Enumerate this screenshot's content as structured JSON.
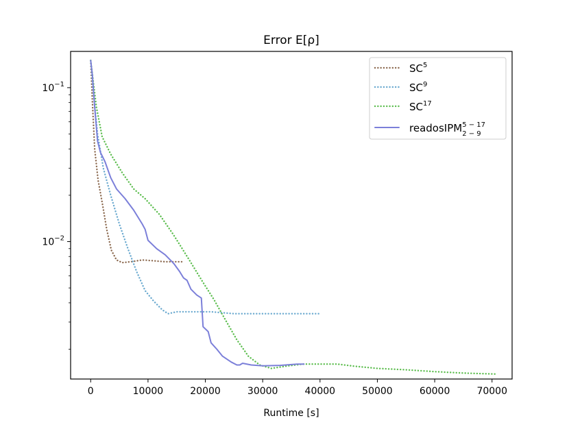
{
  "chart_data": {
    "type": "line",
    "title": "Error E[ρ]",
    "xlabel": "Runtime [s]",
    "ylabel": "",
    "yscale": "log",
    "xlim": [
      -3500,
      73500
    ],
    "ylim": [
      0.00128,
      0.172
    ],
    "xticks": [
      0,
      10000,
      20000,
      30000,
      40000,
      50000,
      60000,
      70000
    ],
    "xtick_labels": [
      "0",
      "10000",
      "20000",
      "30000",
      "40000",
      "50000",
      "60000",
      "70000"
    ],
    "ytick_labels": [
      {
        "value": 0.1,
        "base": "10",
        "exp": "−1"
      },
      {
        "value": 0.01,
        "base": "10",
        "exp": "−2"
      }
    ],
    "grid": false,
    "legend_position": "top-right",
    "series": [
      {
        "name_base": "SC",
        "name_sup": "5",
        "name_sub": "",
        "color": "#8c6a50",
        "style": "dotted",
        "points": [
          [
            0,
            0.15
          ],
          [
            300,
            0.08
          ],
          [
            700,
            0.04
          ],
          [
            1300,
            0.025
          ],
          [
            2000,
            0.018
          ],
          [
            2800,
            0.012
          ],
          [
            3600,
            0.0088
          ],
          [
            4500,
            0.0076
          ],
          [
            5500,
            0.0073
          ],
          [
            7000,
            0.0074
          ],
          [
            9000,
            0.0076
          ],
          [
            11000,
            0.0075
          ],
          [
            13000,
            0.0074
          ],
          [
            14500,
            0.0074
          ],
          [
            16000,
            0.0074
          ]
        ]
      },
      {
        "name_base": "SC",
        "name_sup": "9",
        "name_sub": "",
        "color": "#6aa9cf",
        "style": "dotted",
        "points": [
          [
            0,
            0.15
          ],
          [
            500,
            0.09
          ],
          [
            1200,
            0.05
          ],
          [
            2200,
            0.03
          ],
          [
            3500,
            0.02
          ],
          [
            5000,
            0.013
          ],
          [
            6500,
            0.009
          ],
          [
            8000,
            0.0064
          ],
          [
            9500,
            0.0048
          ],
          [
            11000,
            0.0041
          ],
          [
            12500,
            0.0036
          ],
          [
            13500,
            0.0034
          ],
          [
            15000,
            0.0035
          ],
          [
            18000,
            0.0035
          ],
          [
            21000,
            0.0035
          ],
          [
            25000,
            0.0034
          ],
          [
            30000,
            0.0034
          ],
          [
            35000,
            0.0034
          ],
          [
            40000,
            0.0034
          ]
        ]
      },
      {
        "name_base": "SC",
        "name_sup": "17",
        "name_sub": "",
        "color": "#5cbd4e",
        "style": "dotted",
        "points": [
          [
            0,
            0.15
          ],
          [
            1000,
            0.075
          ],
          [
            2000,
            0.048
          ],
          [
            3500,
            0.037
          ],
          [
            5500,
            0.028
          ],
          [
            7500,
            0.022
          ],
          [
            9500,
            0.019
          ],
          [
            12000,
            0.015
          ],
          [
            14500,
            0.011
          ],
          [
            17000,
            0.0078
          ],
          [
            19500,
            0.0055
          ],
          [
            21500,
            0.0042
          ],
          [
            23500,
            0.0031
          ],
          [
            25500,
            0.0023
          ],
          [
            27500,
            0.0018
          ],
          [
            29500,
            0.00158
          ],
          [
            31500,
            0.0015
          ],
          [
            34000,
            0.00155
          ],
          [
            37000,
            0.0016
          ],
          [
            40000,
            0.0016
          ],
          [
            43000,
            0.0016
          ],
          [
            46000,
            0.00155
          ],
          [
            50000,
            0.0015
          ],
          [
            55000,
            0.00147
          ],
          [
            60000,
            0.00143
          ],
          [
            65000,
            0.0014
          ],
          [
            70500,
            0.00138
          ]
        ]
      },
      {
        "name_base": "readosIPM",
        "name_sup": "5 − 17",
        "name_sub": "2 − 9",
        "color": "#7b7fd9",
        "style": "solid",
        "points": [
          [
            0,
            0.15
          ],
          [
            300,
            0.12
          ],
          [
            700,
            0.075
          ],
          [
            1200,
            0.045
          ],
          [
            1700,
            0.038
          ],
          [
            2500,
            0.033
          ],
          [
            3500,
            0.026
          ],
          [
            4500,
            0.022
          ],
          [
            6000,
            0.019
          ],
          [
            7500,
            0.016
          ],
          [
            9000,
            0.013
          ],
          [
            9500,
            0.012
          ],
          [
            10000,
            0.0102
          ],
          [
            11500,
            0.009
          ],
          [
            13000,
            0.0082
          ],
          [
            14500,
            0.0072
          ],
          [
            15500,
            0.0064
          ],
          [
            16200,
            0.0058
          ],
          [
            16800,
            0.0056
          ],
          [
            17500,
            0.0049
          ],
          [
            18500,
            0.0045
          ],
          [
            19300,
            0.0043
          ],
          [
            19600,
            0.0028
          ],
          [
            20500,
            0.0026
          ],
          [
            21000,
            0.0022
          ],
          [
            22000,
            0.002
          ],
          [
            23000,
            0.0018
          ],
          [
            24500,
            0.00165
          ],
          [
            25500,
            0.00158
          ],
          [
            26000,
            0.00158
          ],
          [
            26500,
            0.00162
          ],
          [
            28000,
            0.00158
          ],
          [
            30000,
            0.00156
          ],
          [
            33000,
            0.00157
          ],
          [
            36000,
            0.0016
          ],
          [
            37200,
            0.0016
          ]
        ]
      }
    ]
  }
}
